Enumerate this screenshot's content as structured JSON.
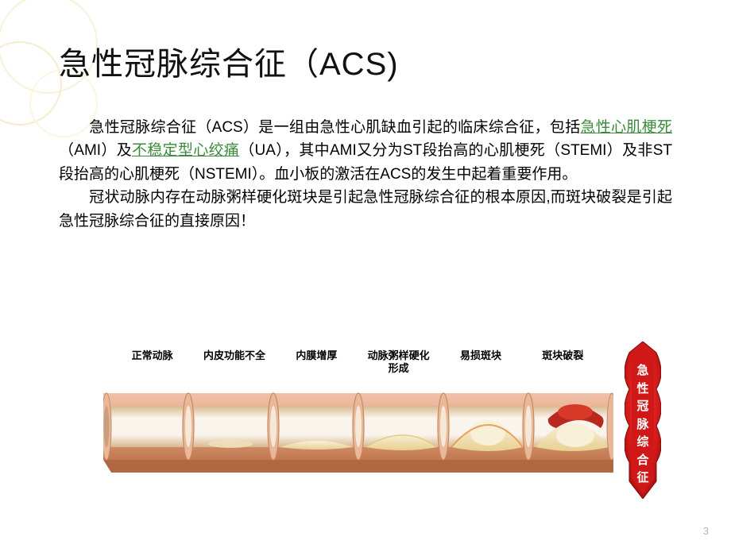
{
  "title": "急性冠脉综合征（ACS)",
  "para": {
    "p1a": "急性冠脉综合征（ACS）是一组由急性心肌缺血引起的临床综合征，包括",
    "link1": "急性心肌梗死",
    "p1b": "（AMI）及",
    "link2": "不稳定型心绞痛",
    "p1c": "（UA），其中AMI又分为ST段抬高的心肌梗死（STEMI）及非ST段抬高的心肌梗死（NSTEMI）。血小板的激活在ACS的发生中起着重要作用。",
    "p2": "冠状动脉内存在动脉粥样硬化斑块是引起急性冠脉综合征的根本原因,而斑块破裂是引起急性冠脉综合征的直接原因！"
  },
  "stages": {
    "s1": "正常动脉",
    "s2": "内皮功能不全",
    "s3": "内膜增厚",
    "s4": "动脉粥样硬化\n形成",
    "s5": "易损斑块",
    "s6": "斑块破裂"
  },
  "banner": "急性冠脉综合征",
  "page_number": "3",
  "colors": {
    "circle1": "#f0d890",
    "circle2": "#e8c870",
    "circle3": "#f5e5b0",
    "link": "#3a8a3a",
    "artery_outer": "#e8a88a",
    "artery_outer_light": "#f0c0a8",
    "artery_inner": "#faf5ec",
    "artery_shadow": "#c07850",
    "plaque_yellow": "#f5e8c0",
    "plaque_dark": "#e8d090",
    "blood": "#b82820",
    "banner_red": "#d01818",
    "banner_red_dark": "#a01010"
  }
}
